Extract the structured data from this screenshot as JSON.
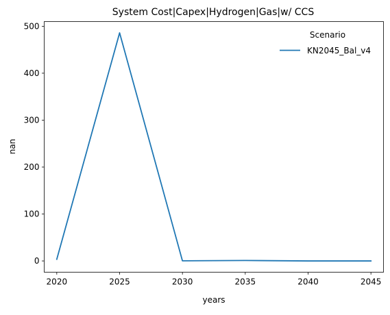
{
  "chart_data": {
    "type": "line",
    "title": "System Cost|Capex|Hydrogen|Gas|w/ CCS",
    "xlabel": "years",
    "ylabel": "nan",
    "x": [
      2020,
      2025,
      2030,
      2035,
      2040,
      2045
    ],
    "xlim": [
      2019,
      2046
    ],
    "ylim": [
      -24,
      510
    ],
    "xticks": [
      "2020",
      "2025",
      "2030",
      "2035",
      "2040",
      "2045"
    ],
    "yticks": [
      "0",
      "100",
      "200",
      "300",
      "400",
      "500"
    ],
    "grid": false,
    "legend": {
      "title": "Scenario",
      "placement": "top-right"
    },
    "series": [
      {
        "name": "KN2045_Bal_v4",
        "color": "#1f77b4",
        "values": [
          3.5,
          486,
          0.3,
          1.0,
          0.0,
          0.0
        ]
      }
    ]
  }
}
